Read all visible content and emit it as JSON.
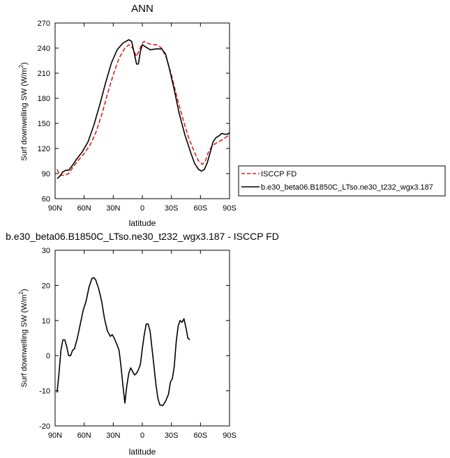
{
  "chart_data": [
    {
      "type": "line",
      "title": "ANN",
      "xlabel": "latitude",
      "ylabel": "Surf downwelling SW (W/m",
      "ylabel_sup": "2",
      "ylabel_tail": ")",
      "xlim": [
        90,
        -90
      ],
      "ylim": [
        60,
        270
      ],
      "x_ticks": [
        90,
        60,
        30,
        0,
        -30,
        -60,
        -90
      ],
      "x_tick_labels": [
        "90N",
        "60N",
        "30N",
        "0",
        "30S",
        "60S",
        "90S"
      ],
      "y_ticks": [
        60,
        90,
        120,
        150,
        180,
        210,
        240,
        270
      ],
      "y_tick_labels": [
        "60",
        "90",
        "120",
        "150",
        "180",
        "210",
        "240",
        "270"
      ],
      "legend_position": "right",
      "series": [
        {
          "name": "ISCCP FD",
          "color": "#e41a1c",
          "dash": "dashed",
          "points": [
            [
              88,
              95
            ],
            [
              85,
              88
            ],
            [
              80,
              88
            ],
            [
              76,
              90
            ],
            [
              72,
              97
            ],
            [
              66,
              106
            ],
            [
              60,
              114
            ],
            [
              54,
              124
            ],
            [
              48,
              139
            ],
            [
              42,
              160
            ],
            [
              36,
              185
            ],
            [
              30,
              208
            ],
            [
              24,
              228
            ],
            [
              18,
              240
            ],
            [
              14,
              244
            ],
            [
              10,
              240
            ],
            [
              6,
              230
            ],
            [
              3,
              238
            ],
            [
              0,
              246
            ],
            [
              -2,
              248
            ],
            [
              -5,
              246
            ],
            [
              -10,
              244
            ],
            [
              -15,
              244
            ],
            [
              -20,
              240
            ],
            [
              -25,
              228
            ],
            [
              -30,
              208
            ],
            [
              -36,
              180
            ],
            [
              -42,
              155
            ],
            [
              -48,
              132
            ],
            [
              -54,
              115
            ],
            [
              -58,
              105
            ],
            [
              -62,
              101
            ],
            [
              -65,
              105
            ],
            [
              -68,
              115
            ],
            [
              -72,
              123
            ],
            [
              -77,
              127
            ],
            [
              -82,
              130
            ],
            [
              -87,
              134
            ],
            [
              -90,
              136
            ]
          ]
        },
        {
          "name": "b.e30_beta06.B1850C_LTso.ne30_t232_wgx3.187",
          "color": "#000000",
          "dash": "solid",
          "points": [
            [
              88,
              84
            ],
            [
              85,
              87
            ],
            [
              82,
              92
            ],
            [
              79,
              94
            ],
            [
              76,
              94
            ],
            [
              72,
              100
            ],
            [
              68,
              107
            ],
            [
              62,
              116
            ],
            [
              56,
              128
            ],
            [
              50,
              148
            ],
            [
              44,
              172
            ],
            [
              38,
              198
            ],
            [
              32,
              222
            ],
            [
              26,
              238
            ],
            [
              20,
              246
            ],
            [
              14,
              250
            ],
            [
              11,
              248
            ],
            [
              8,
              232
            ],
            [
              6,
              221
            ],
            [
              4,
              221
            ],
            [
              2,
              236
            ],
            [
              0,
              244
            ],
            [
              -4,
              241
            ],
            [
              -8,
              238
            ],
            [
              -14,
              239
            ],
            [
              -20,
              239
            ],
            [
              -24,
              233
            ],
            [
              -28,
              215
            ],
            [
              -33,
              190
            ],
            [
              -38,
              162
            ],
            [
              -44,
              136
            ],
            [
              -50,
              115
            ],
            [
              -54,
              102
            ],
            [
              -58,
              95
            ],
            [
              -61,
              93
            ],
            [
              -64,
              95
            ],
            [
              -67,
              103
            ],
            [
              -70,
              115
            ],
            [
              -73,
              128
            ],
            [
              -76,
              133
            ],
            [
              -79,
              135
            ],
            [
              -82,
              138
            ],
            [
              -85,
              137
            ],
            [
              -88,
              137
            ],
            [
              -90,
              139
            ]
          ]
        }
      ]
    },
    {
      "type": "line",
      "title": "b.e30_beta06.B1850C_LTso.ne30_t232_wgx3.187 - ISCCP FD",
      "xlabel": "latitude",
      "ylabel": "Surf downwelling SW (W/m",
      "ylabel_sup": "2",
      "ylabel_tail": ")",
      "xlim": [
        90,
        -90
      ],
      "ylim": [
        -20,
        30
      ],
      "x_ticks": [
        90,
        60,
        30,
        0,
        -30,
        -60,
        -90
      ],
      "x_tick_labels": [
        "90N",
        "60N",
        "30N",
        "0",
        "30S",
        "60S",
        "90S"
      ],
      "y_ticks": [
        -20,
        -10,
        0,
        10,
        20,
        30
      ],
      "y_tick_labels": [
        "-20",
        "-10",
        "0",
        "10",
        "20",
        "30"
      ],
      "series": [
        {
          "color": "#000000",
          "dash": "solid",
          "points": [
            [
              88,
              -10.5
            ],
            [
              86,
              -5
            ],
            [
              84,
              1.5
            ],
            [
              82,
              4.5
            ],
            [
              80,
              4.5
            ],
            [
              78,
              2.5
            ],
            [
              76,
              0
            ],
            [
              74,
              0
            ],
            [
              72,
              1.5
            ],
            [
              70,
              2
            ],
            [
              67,
              5
            ],
            [
              64,
              9
            ],
            [
              61,
              13
            ],
            [
              58,
              15.5
            ],
            [
              55,
              19.5
            ],
            [
              52,
              22
            ],
            [
              50,
              22.2
            ],
            [
              48,
              21.5
            ],
            [
              45,
              19
            ],
            [
              42,
              15.5
            ],
            [
              39,
              10.5
            ],
            [
              36,
              7
            ],
            [
              33,
              5.5
            ],
            [
              31,
              6
            ],
            [
              29,
              5
            ],
            [
              26,
              3
            ],
            [
              24,
              1.5
            ],
            [
              22,
              -3
            ],
            [
              20,
              -8.5
            ],
            [
              18,
              -13.5
            ],
            [
              16,
              -8.5
            ],
            [
              14,
              -5
            ],
            [
              12,
              -3.5
            ],
            [
              10,
              -4.5
            ],
            [
              8,
              -5.5
            ],
            [
              6,
              -5
            ],
            [
              4,
              -4
            ],
            [
              2,
              -2.5
            ],
            [
              0,
              2
            ],
            [
              -2,
              6
            ],
            [
              -4,
              9
            ],
            [
              -6,
              9
            ],
            [
              -8,
              7
            ],
            [
              -10,
              2
            ],
            [
              -12,
              -3
            ],
            [
              -14,
              -8
            ],
            [
              -16,
              -12
            ],
            [
              -18,
              -14
            ],
            [
              -21,
              -14.2
            ],
            [
              -24,
              -13
            ],
            [
              -27,
              -11
            ],
            [
              -29,
              -7.5
            ],
            [
              -31,
              -6.5
            ],
            [
              -33,
              -3
            ],
            [
              -35,
              4
            ],
            [
              -37,
              8.5
            ],
            [
              -39,
              10
            ],
            [
              -41,
              9.5
            ],
            [
              -43,
              10.5
            ],
            [
              -45,
              8
            ],
            [
              -47,
              5
            ],
            [
              -49,
              4.5
            ]
          ]
        }
      ]
    }
  ]
}
